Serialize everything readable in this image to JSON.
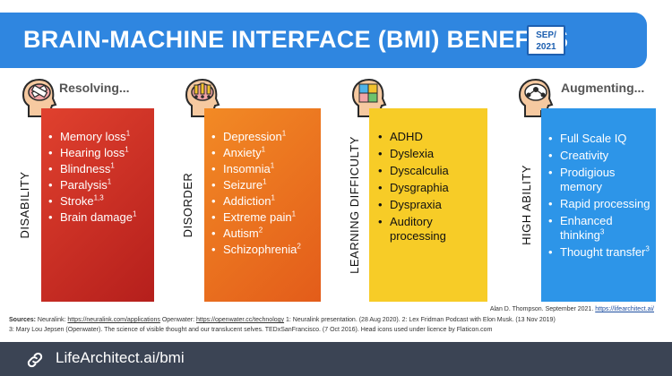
{
  "title": "BRAIN-MACHINE INTERFACE (BMI) BENEFITS",
  "date_badge": [
    "SEP/",
    "2021"
  ],
  "columns": [
    {
      "header": "Resolving...",
      "vertical_label": "DISABILITY",
      "icon": "brain-bandage-icon",
      "items": [
        {
          "text": "Memory loss",
          "sup": "1"
        },
        {
          "text": "Hearing loss",
          "sup": "1"
        },
        {
          "text": "Blindness",
          "sup": "1"
        },
        {
          "text": "Paralysis",
          "sup": "1"
        },
        {
          "text": "Stroke",
          "sup": "1,3"
        },
        {
          "text": "Brain damage",
          "sup": "1"
        }
      ]
    },
    {
      "header": "",
      "vertical_label": "DISORDER",
      "icon": "brain-exclamation-icon",
      "items": [
        {
          "text": "Depression",
          "sup": "1"
        },
        {
          "text": "Anxiety",
          "sup": "1"
        },
        {
          "text": "Insomnia",
          "sup": "1"
        },
        {
          "text": "Seizure",
          "sup": "1"
        },
        {
          "text": "Addiction",
          "sup": "1"
        },
        {
          "text": "Extreme pain",
          "sup": "1"
        },
        {
          "text": "Autism",
          "sup": "2"
        },
        {
          "text": "Schizophrenia",
          "sup": "2"
        }
      ]
    },
    {
      "header": "",
      "vertical_label": "LEARNING DIFFICULTY",
      "icon": "brain-puzzle-icon",
      "items": [
        {
          "text": "ADHD",
          "sup": ""
        },
        {
          "text": "Dyslexia",
          "sup": ""
        },
        {
          "text": "Dyscalculia",
          "sup": ""
        },
        {
          "text": "Dysgraphia",
          "sup": ""
        },
        {
          "text": "Dyspraxia",
          "sup": ""
        },
        {
          "text": "Auditory processing",
          "sup": ""
        }
      ]
    },
    {
      "header": "Augmenting...",
      "vertical_label": "HIGH ABILITY",
      "icon": "brain-network-icon",
      "items": [
        {
          "text": "Full Scale IQ",
          "sup": ""
        },
        {
          "text": "Creativity",
          "sup": ""
        },
        {
          "text": "Prodigious memory",
          "sup": ""
        },
        {
          "text": "Rapid processing",
          "sup": ""
        },
        {
          "text": "Enhanced thinking",
          "sup": "3"
        },
        {
          "text": "Thought transfer",
          "sup": "3"
        }
      ]
    }
  ],
  "credit": {
    "text": "Alan D. Thompson. September 2021.",
    "link": "https://lifearchitect.ai/"
  },
  "sources": {
    "label": "Sources:",
    "line1_a": "Neuralink:",
    "link1": "https://neuralink.com/applications",
    "line1_b": "Openwater:",
    "link2": "https://openwater.cc/technology",
    "line1_c": "1: Neuralink presentation. (28 Aug 2020). 2: Lex Fridman Podcast with Elon Musk. (13 Nov 2019)",
    "line2": "3: Mary Lou Jepsen (Openwater). The science of visible thought and our translucent selves. TEDxSanFrancisco. (7 Oct 2016). Head icons used under licence by Flaticon.com"
  },
  "footer": {
    "text": "LifeArchitect.ai/bmi",
    "icon": "link-icon"
  },
  "colors": {
    "banner": "#2f86e0",
    "disability": "#c8261f",
    "disorder": "#ee7020",
    "learning": "#f7cc27",
    "high_ability": "#2d95e8",
    "footer": "#3b4454"
  }
}
